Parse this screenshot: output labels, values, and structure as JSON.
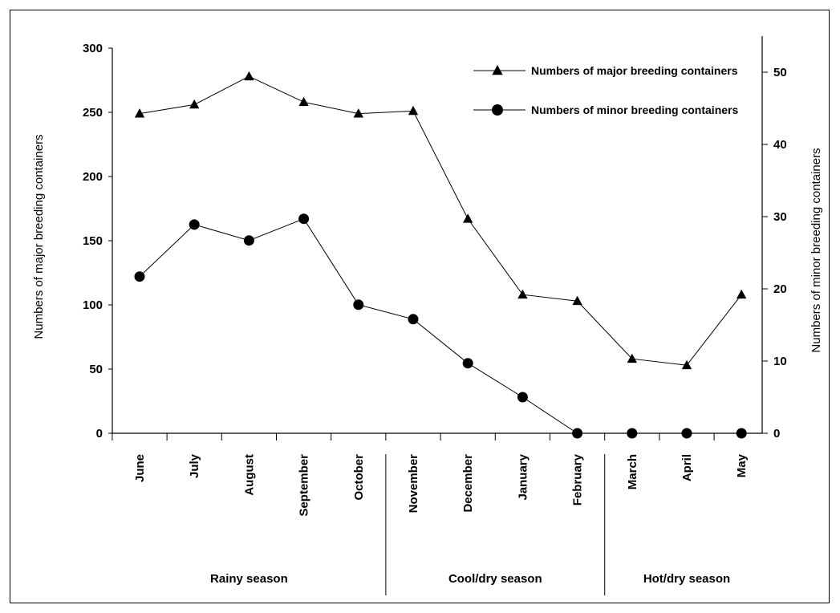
{
  "chart_data": {
    "type": "line",
    "categories": [
      "June",
      "July",
      "August",
      "September",
      "October",
      "November",
      "December",
      "January",
      "February",
      "March",
      "April",
      "May"
    ],
    "seasons": [
      {
        "label": "Rainy season",
        "from": 0,
        "to": 4
      },
      {
        "label": "Cool/dry season",
        "from": 5,
        "to": 8
      },
      {
        "label": "Hot/dry season",
        "from": 9,
        "to": 11
      }
    ],
    "ylabel_left": "Numbers of major breeding containers",
    "ylabel_right": "Numbers of minor breeding containers",
    "ylim_left": [
      0,
      300
    ],
    "yticks_left": [
      "0",
      "50",
      "100",
      "150",
      "200",
      "250",
      "300"
    ],
    "ylim_right": [
      0,
      55
    ],
    "yticks_right": [
      "0",
      "10",
      "20",
      "30",
      "40",
      "50"
    ],
    "series": [
      {
        "name": "Numbers of major breeding containers",
        "axis": "left",
        "marker": "triangle",
        "values": [
          249,
          256,
          278,
          258,
          249,
          251,
          167,
          108,
          103,
          58,
          53,
          108
        ]
      },
      {
        "name": "Numbers of minor breeding containers",
        "axis": "right",
        "marker": "circle",
        "values": [
          21.7,
          28.9,
          26.7,
          29.7,
          17.8,
          15.8,
          9.7,
          5.0,
          0,
          0,
          0,
          0
        ]
      }
    ],
    "legend_position": "top-right",
    "grid": false
  }
}
